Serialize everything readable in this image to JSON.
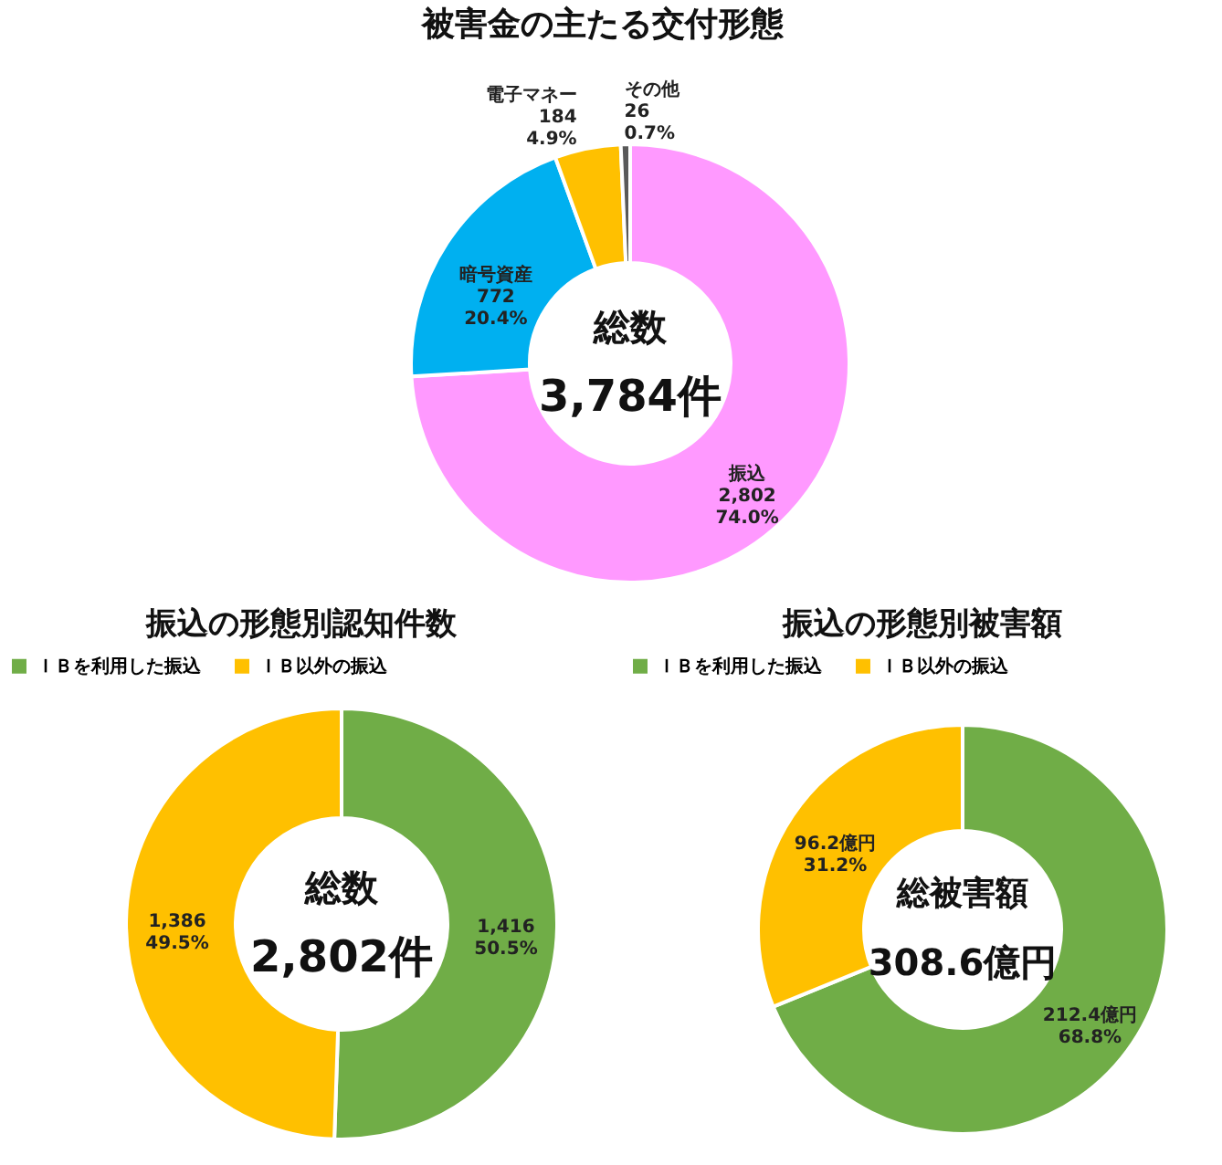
{
  "chart_data": [
    {
      "type": "donut",
      "title": "被害金の主たる交付形態",
      "categories": [
        "振込",
        "暗号資産",
        "電子マネー",
        "その他"
      ],
      "values": [
        2802,
        772,
        184,
        26
      ],
      "colors": [
        "#ff99ff",
        "#00b0f0",
        "#ffc000",
        "#595959"
      ],
      "value_labels": [
        "2,802\n74.0%",
        "772\n20.4%",
        "184\n4.9%",
        "26\n0.7%"
      ],
      "annotations": [
        "総数",
        "3,784件"
      ],
      "legend": false
    },
    {
      "type": "donut",
      "title": "振込の形態別認知件数",
      "categories": [
        "ＩＢを利用した振込",
        "ＩＢ以外の振込"
      ],
      "values": [
        1416,
        1386
      ],
      "colors": [
        "#70ad47",
        "#ffc000"
      ],
      "value_labels": [
        "1,416\n50.5%",
        "1,386\n49.5%"
      ],
      "annotations": [
        "総数",
        "2,802件"
      ],
      "legend": "top"
    },
    {
      "type": "donut",
      "title": "振込の形態別被害額",
      "categories": [
        "ＩＢを利用した振込",
        "ＩＢ以外の振込"
      ],
      "values": [
        212.4,
        96.2
      ],
      "colors": [
        "#70ad47",
        "#ffc000"
      ],
      "value_labels": [
        "212.4億円\n68.8%",
        "96.2億円\n31.2%"
      ],
      "annotations": [
        "総被害額",
        "308.6億円"
      ],
      "legend": "top"
    }
  ]
}
